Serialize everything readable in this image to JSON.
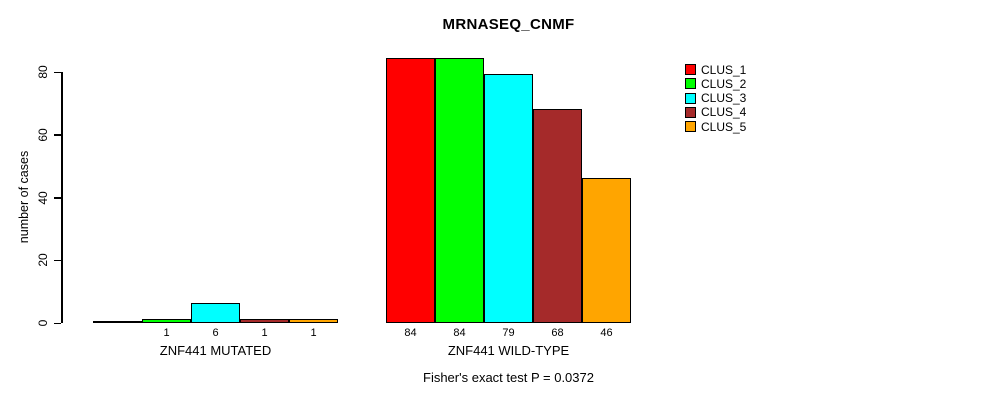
{
  "title": "MRNASEQ_CNMF",
  "footer": "Fisher's exact test P = 0.0372",
  "y_axis": {
    "label": "number of cases",
    "ticks": [
      0,
      20,
      40,
      60,
      80
    ]
  },
  "legend": {
    "position": "right",
    "items": [
      {
        "label": "CLUS_1",
        "color": "#FF0000"
      },
      {
        "label": "CLUS_2",
        "color": "#00FF00"
      },
      {
        "label": "CLUS_3",
        "color": "#00FFFF"
      },
      {
        "label": "CLUS_4",
        "color": "#A52A2A"
      },
      {
        "label": "CLUS_5",
        "color": "#FFA500"
      }
    ]
  },
  "chart_data": {
    "type": "bar",
    "title": "MRNASEQ_CNMF",
    "xlabel": "",
    "ylabel": "number of cases",
    "ylim": [
      0,
      84
    ],
    "grid": false,
    "legend_position": "top-right",
    "series": [
      "CLUS_1",
      "CLUS_2",
      "CLUS_3",
      "CLUS_4",
      "CLUS_5"
    ],
    "series_colors": [
      "#FF0000",
      "#00FF00",
      "#00FFFF",
      "#A52A2A",
      "#FFA500"
    ],
    "groups": [
      {
        "label": "ZNF441 MUTATED",
        "values": [
          0,
          1,
          6,
          1,
          1
        ],
        "bar_labels": [
          "",
          "1",
          "6",
          "1",
          "1"
        ]
      },
      {
        "label": "ZNF441 WILD-TYPE",
        "values": [
          84,
          84,
          79,
          68,
          46
        ],
        "bar_labels": [
          "84",
          "84",
          "79",
          "68",
          "46"
        ]
      }
    ],
    "annotation": "Fisher's exact test P = 0.0372"
  }
}
